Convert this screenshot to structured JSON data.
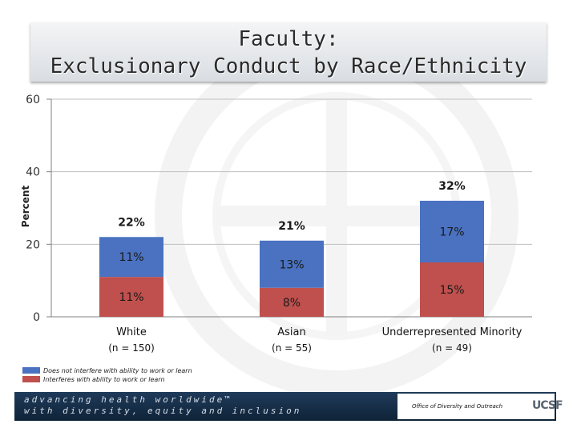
{
  "title": {
    "line1": "Faculty:",
    "line2": "Exclusionary Conduct by Race/Ethnicity"
  },
  "colors": {
    "does_not_interfere": "#4a72c1",
    "interferes": "#c0504d",
    "axis": "#808080",
    "footer": "#1a3350"
  },
  "chart_data": {
    "type": "bar",
    "stacked": true,
    "ylabel": "Percent",
    "ylim": [
      0,
      60
    ],
    "yticks": [
      0,
      20,
      40,
      60
    ],
    "grid": true,
    "categories": [
      "White",
      "Asian",
      "Underrepresented Minority"
    ],
    "category_counts": [
      "(n = 150)",
      "(n = 55)",
      "(n = 49)"
    ],
    "series": [
      {
        "name": "Interferes with ability to work or learn",
        "color": "#c0504d",
        "values": [
          11,
          8,
          15
        ],
        "labels": [
          "11%",
          "8%",
          "15%"
        ]
      },
      {
        "name": "Does not interfere with ability to work or learn",
        "color": "#4a72c1",
        "values": [
          11,
          13,
          17
        ],
        "labels": [
          "11%",
          "13%",
          "17%"
        ]
      }
    ],
    "totals": [
      22,
      21,
      32
    ],
    "total_labels": [
      "22%",
      "21%",
      "32%"
    ]
  },
  "legend": {
    "items": [
      {
        "label": "Does not interfere with ability to work or learn",
        "color": "#4a72c1"
      },
      {
        "label": "Interferes with ability to work or learn",
        "color": "#c0504d"
      }
    ]
  },
  "footer": {
    "tagline1": "advancing health worldwide™",
    "tagline2": "with diversity, equity and inclusion",
    "office": "Office of Diversity and Outreach",
    "logo": "UCSF"
  }
}
